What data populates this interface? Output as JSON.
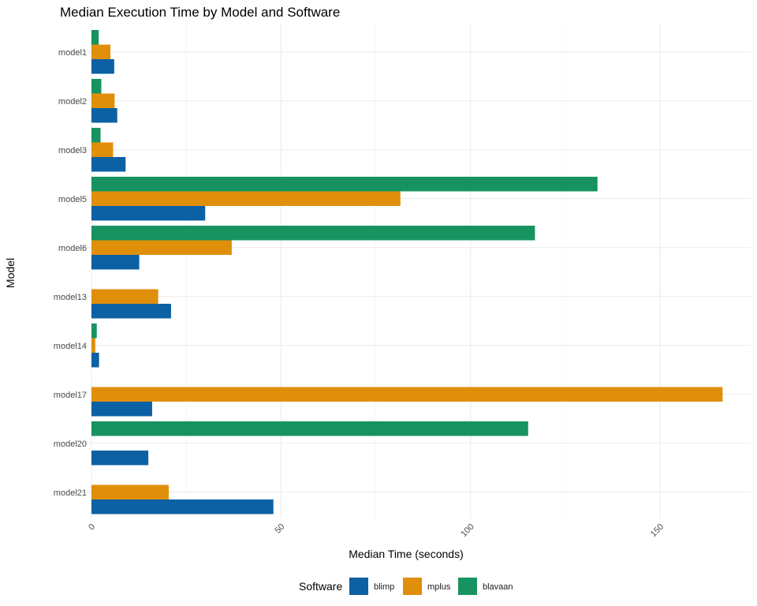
{
  "chart_data": {
    "type": "bar",
    "orientation": "horizontal",
    "title": "Median Execution Time by Model and Software",
    "xlabel": "Median Time (seconds)",
    "ylabel": "Model",
    "categories": [
      "model1",
      "model2",
      "model3",
      "model5",
      "model6",
      "model13",
      "model14",
      "model17",
      "model20",
      "model21"
    ],
    "x_ticks": [
      0,
      50,
      100,
      150
    ],
    "xlim": [
      0,
      167
    ],
    "grid": true,
    "series": [
      {
        "name": "blimp",
        "color": "#0b61a4",
        "values": [
          6.0,
          6.8,
          9.0,
          30.0,
          12.6,
          21.0,
          2.0,
          16.0,
          15.0,
          48.0
        ]
      },
      {
        "name": "mplus",
        "color": "#e08f0b",
        "values": [
          5.0,
          6.1,
          5.7,
          81.5,
          37.0,
          17.6,
          1.0,
          166.5,
          null,
          20.4
        ]
      },
      {
        "name": "blavaan",
        "color": "#169361",
        "values": [
          1.9,
          2.6,
          2.4,
          133.5,
          117.0,
          null,
          1.4,
          null,
          115.2,
          null
        ]
      }
    ],
    "legend": {
      "title": "Software",
      "position": "bottom"
    }
  }
}
